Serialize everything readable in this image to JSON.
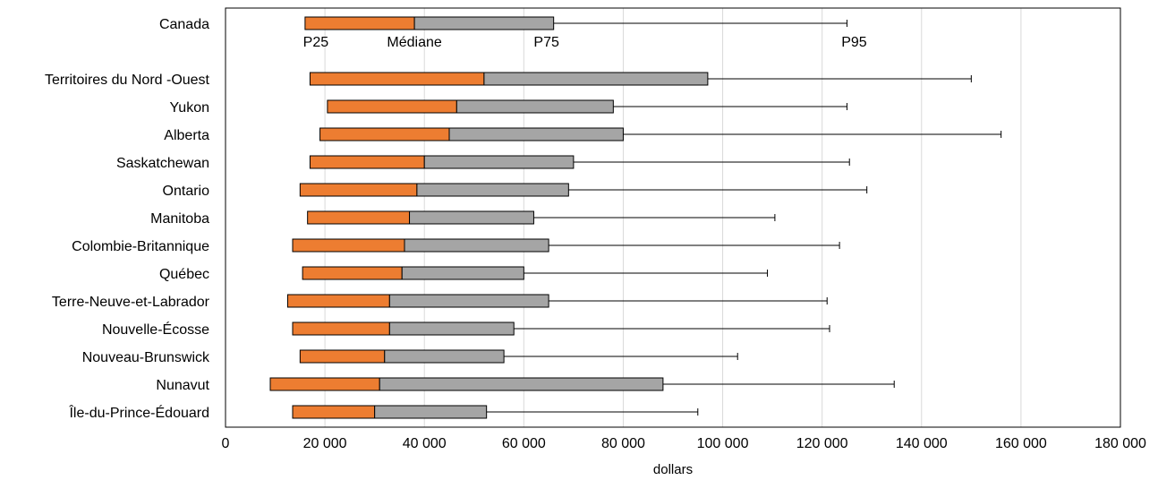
{
  "chart_data": {
    "type": "bar",
    "subtype": "horizontal-stacked-box-whisker",
    "xlabel": "dollars",
    "xlim": [
      0,
      180000
    ],
    "xticks": [
      0,
      20000,
      40000,
      60000,
      80000,
      100000,
      120000,
      140000,
      160000,
      180000
    ],
    "xtick_labels": [
      "0",
      "20 000",
      "40 000",
      "60 000",
      "80 000",
      "100 000",
      "120 000",
      "140 000",
      "160 000",
      "180 000"
    ],
    "grid": "vertical",
    "series_colors": {
      "p25_to_median": "#ED7D31",
      "median_to_p75": "#A5A5A5",
      "whisker": "#000000"
    },
    "annotations": [
      "P25",
      "Médiane",
      "P75",
      "P95"
    ],
    "categories": [
      "Canada",
      "Territoires du Nord -Ouest",
      "Yukon",
      "Alberta",
      "Saskatchewan",
      "Ontario",
      "Manitoba",
      "Colombie-Britannique",
      "Québec",
      "Terre-Neuve-et-Labrador",
      "Nouvelle-Écosse",
      "Nouveau-Brunswick",
      "Nunavut",
      "Île-du-Prince-Édouard"
    ],
    "rows": [
      {
        "category": "Canada",
        "p25": 16000,
        "median": 38000,
        "p75": 66000,
        "p95": 125000
      },
      {
        "category": "Territoires du Nord -Ouest",
        "p25": 17000,
        "median": 52000,
        "p75": 97000,
        "p95": 150000
      },
      {
        "category": "Yukon",
        "p25": 20500,
        "median": 46500,
        "p75": 78000,
        "p95": 125000
      },
      {
        "category": "Alberta",
        "p25": 19000,
        "median": 45000,
        "p75": 80000,
        "p95": 156000
      },
      {
        "category": "Saskatchewan",
        "p25": 17000,
        "median": 40000,
        "p75": 70000,
        "p95": 125500
      },
      {
        "category": "Ontario",
        "p25": 15000,
        "median": 38500,
        "p75": 69000,
        "p95": 129000
      },
      {
        "category": "Manitoba",
        "p25": 16500,
        "median": 37000,
        "p75": 62000,
        "p95": 110500
      },
      {
        "category": "Colombie-Britannique",
        "p25": 13500,
        "median": 36000,
        "p75": 65000,
        "p95": 123500
      },
      {
        "category": "Québec",
        "p25": 15500,
        "median": 35500,
        "p75": 60000,
        "p95": 109000
      },
      {
        "category": "Terre-Neuve-et-Labrador",
        "p25": 12500,
        "median": 33000,
        "p75": 65000,
        "p95": 121000
      },
      {
        "category": "Nouvelle-Écosse",
        "p25": 13500,
        "median": 33000,
        "p75": 58000,
        "p95": 121500
      },
      {
        "category": "Nouveau-Brunswick",
        "p25": 15000,
        "median": 32000,
        "p75": 56000,
        "p95": 103000
      },
      {
        "category": "Nunavut",
        "p25": 9000,
        "median": 31000,
        "p75": 88000,
        "p95": 134500
      },
      {
        "category": "Île-du-Prince-Édouard",
        "p25": 13500,
        "median": 30000,
        "p75": 52500,
        "p95": 95000
      }
    ]
  }
}
